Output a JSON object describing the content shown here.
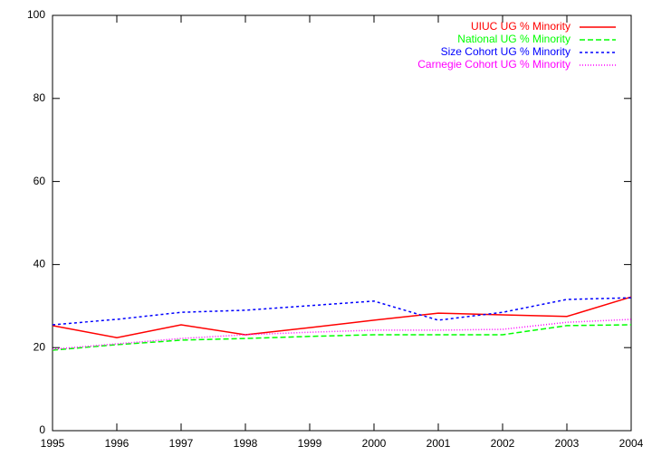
{
  "chart_data": {
    "type": "line",
    "x": [
      1995,
      1996,
      1997,
      1998,
      1999,
      2000,
      2001,
      2002,
      2003,
      2004
    ],
    "series": [
      {
        "name": "UIUC UG % Minority",
        "color": "#ff0000",
        "values": [
          25.3,
          22.4,
          25.5,
          23.1,
          24.8,
          26.6,
          28.3,
          27.9,
          27.5,
          32.2
        ]
      },
      {
        "name": "National UG % Minority",
        "color": "#00ff00",
        "values": [
          19.4,
          20.7,
          21.8,
          22.2,
          22.7,
          23.1,
          23.1,
          23.1,
          25.3,
          25.5
        ]
      },
      {
        "name": "Size Cohort UG % Minority",
        "color": "#0000ff",
        "values": [
          25.5,
          26.8,
          28.5,
          29.0,
          30.1,
          31.2,
          26.6,
          28.5,
          31.6,
          32.0
        ]
      },
      {
        "name": "Carnegie Cohort UG % Minority",
        "color": "#ff00ff",
        "values": [
          19.6,
          20.9,
          22.2,
          23.1,
          23.7,
          24.2,
          24.2,
          24.4,
          26.1,
          26.8
        ]
      }
    ],
    "xlim": [
      1995,
      2004
    ],
    "xticks": [
      1995,
      1996,
      1997,
      1998,
      1999,
      2000,
      2001,
      2002,
      2003,
      2004
    ],
    "ylim": [
      0,
      100
    ],
    "yticks": [
      0,
      20,
      40,
      60,
      80,
      100
    ],
    "grid": false,
    "legend": "top-right"
  }
}
